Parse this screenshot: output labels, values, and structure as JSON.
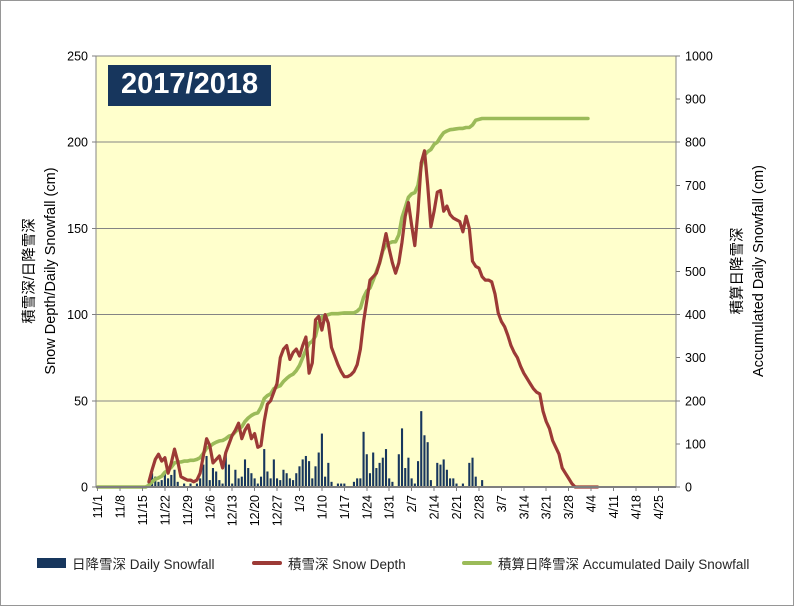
{
  "chart": {
    "title": "2017/2018",
    "left_axis": {
      "title_jp": "積雪深/日降雪深",
      "title_en": "Snow Depth/Daily Snowfall (cm)",
      "ticks": [
        0,
        50,
        100,
        150,
        200,
        250
      ]
    },
    "right_axis": {
      "title_jp": "積算日降雪深",
      "title_en": "Accumulated Daily Snowfall (cm)",
      "ticks": [
        0,
        100,
        200,
        300,
        400,
        500,
        600,
        700,
        800,
        900,
        1000
      ]
    },
    "legend": [
      {
        "label": "日降雪深 Daily Snowfall",
        "swatch": "bar",
        "color": "#17365D"
      },
      {
        "label": "積雪深 Snow Depth",
        "swatch": "line",
        "color": "#9C3A36"
      },
      {
        "label": "積算日降雪深 Accumulated Daily Snowfall",
        "swatch": "line",
        "color": "#9BBB59"
      }
    ]
  },
  "chart_data": {
    "type": "combo-bar-line",
    "plot_bg": "#FFFFCC",
    "gridline_color": "#848484",
    "axis_line_color": "#7F7F7F",
    "n_days": 181,
    "start_label": "11/1",
    "tick_interval_days": 7,
    "x_tick_labels": [
      "11/1",
      "11/8",
      "11/15",
      "11/22",
      "11/29",
      "12/6",
      "12/13",
      "12/20",
      "12/27",
      "1/3",
      "1/10",
      "1/17",
      "1/24",
      "1/31",
      "2/7",
      "2/14",
      "2/21",
      "2/28",
      "3/7",
      "3/14",
      "3/21",
      "3/28",
      "4/4",
      "4/11",
      "4/18",
      "4/25"
    ],
    "left_ylim": [
      0,
      250
    ],
    "right_ylim": [
      0,
      1000
    ],
    "series": [
      {
        "name": "日降雪深 Daily Snowfall",
        "type": "bar",
        "axis": "left",
        "color": "#17365D",
        "values": [
          0,
          0,
          0,
          0,
          0,
          0,
          0,
          0,
          0,
          0,
          0,
          0,
          0,
          0,
          0,
          0,
          4,
          8,
          6,
          3,
          4,
          9,
          5,
          7,
          10,
          3,
          0,
          2,
          0,
          2,
          0,
          2,
          5,
          13,
          18,
          4,
          11,
          9,
          4,
          2,
          20,
          13,
          2,
          10,
          5,
          6,
          16,
          11,
          8,
          5,
          2,
          6,
          22,
          9,
          5,
          16,
          5,
          4,
          10,
          8,
          5,
          4,
          8,
          12,
          16,
          18,
          15,
          5,
          12,
          20,
          31,
          6,
          14,
          3,
          0,
          2,
          2,
          2,
          0,
          0,
          3,
          5,
          5,
          32,
          19,
          8,
          20,
          11,
          14,
          17,
          22,
          5,
          3,
          0,
          19,
          34,
          11,
          17,
          5,
          2,
          15,
          44,
          30,
          26,
          4,
          0,
          14,
          13,
          16,
          10,
          5,
          5,
          2,
          0,
          2,
          0,
          14,
          17,
          6,
          0,
          4,
          0,
          0,
          0,
          0,
          0,
          0,
          0,
          0,
          0,
          0,
          0,
          0,
          0,
          0,
          0,
          0,
          0,
          0,
          0,
          0,
          0,
          0,
          0,
          0,
          0,
          0,
          0,
          0,
          0,
          0,
          0,
          0,
          0,
          0,
          0,
          0,
          0,
          0,
          null,
          null,
          null,
          null,
          null,
          null,
          null,
          null,
          null,
          null,
          null,
          null,
          null,
          null,
          null,
          null,
          null,
          null,
          null,
          null,
          null,
          null
        ]
      },
      {
        "name": "積雪深 Snow Depth",
        "type": "line",
        "axis": "left",
        "color": "#9C3A36",
        "values": [
          null,
          null,
          null,
          null,
          null,
          null,
          null,
          null,
          null,
          null,
          null,
          null,
          null,
          null,
          null,
          null,
          3,
          10,
          16,
          19,
          15,
          17,
          8,
          14,
          22,
          15,
          6,
          5,
          4,
          4,
          3,
          4,
          8,
          18,
          28,
          24,
          14,
          16,
          18,
          11,
          20,
          25,
          30,
          33,
          37,
          28,
          33,
          36,
          28,
          31,
          23,
          24,
          38,
          48,
          50,
          55,
          60,
          75,
          80,
          82,
          74,
          78,
          80,
          76,
          82,
          87,
          66,
          72,
          97,
          99,
          91,
          100,
          95,
          81,
          76,
          71,
          67,
          64,
          64,
          65,
          67,
          71,
          80,
          96,
          108,
          120,
          122,
          124,
          130,
          138,
          147,
          138,
          130,
          124,
          130,
          142,
          157,
          165,
          152,
          140,
          160,
          188,
          195,
          175,
          151,
          160,
          171,
          172,
          160,
          163,
          158,
          156,
          155,
          154,
          148,
          157,
          150,
          131,
          128,
          127,
          122,
          120,
          120,
          119,
          112,
          101,
          96,
          93,
          88,
          82,
          78,
          75,
          70,
          66,
          63,
          60,
          57,
          55,
          54,
          44,
          38,
          34,
          27,
          23,
          19,
          11,
          8,
          5,
          2,
          0,
          0,
          0,
          0,
          0,
          0,
          0,
          0,
          null,
          null,
          null,
          null,
          null,
          null,
          null,
          null,
          null,
          null,
          null,
          null,
          null,
          null,
          null,
          null,
          null,
          null,
          null,
          null,
          null,
          null,
          null,
          null
        ]
      },
      {
        "name": "積算日降雪深 Accumulated Daily Snowfall",
        "type": "line",
        "axis": "right",
        "color": "#9BBB59",
        "values": [
          0,
          0,
          0,
          0,
          0,
          0,
          0,
          0,
          0,
          0,
          0,
          0,
          0,
          0,
          0,
          0,
          4,
          12,
          18,
          21,
          25,
          34,
          39,
          46,
          56,
          58,
          58,
          60,
          60,
          62,
          62,
          64,
          68,
          78,
          90,
          94,
          100,
          104,
          107,
          108,
          112,
          118,
          120,
          128,
          135,
          140,
          152,
          160,
          166,
          170,
          172,
          185,
          205,
          212,
          216,
          228,
          232,
          235,
          245,
          252,
          258,
          262,
          270,
          282,
          300,
          318,
          333,
          338,
          350,
          381,
          395,
          397,
          400,
          402,
          402,
          402,
          403,
          404,
          404,
          404,
          404,
          408,
          415,
          440,
          455,
          462,
          480,
          500,
          520,
          548,
          562,
          566,
          569,
          569,
          585,
          625,
          648,
          672,
          680,
          683,
          700,
          745,
          770,
          778,
          783,
          795,
          800,
          812,
          822,
          826,
          829,
          830,
          831,
          832,
          832,
          834,
          834,
          840,
          851,
          853,
          855,
          855,
          855,
          855,
          855,
          855,
          855,
          855,
          855,
          855,
          855,
          855,
          855,
          855,
          855,
          855,
          855,
          855,
          855,
          855,
          855,
          855,
          855,
          855,
          855,
          855,
          855,
          855,
          855,
          855,
          855,
          855,
          855,
          855,
          null,
          null,
          null,
          null,
          null,
          null,
          null,
          null,
          null,
          null,
          null,
          null,
          null,
          null,
          null,
          null,
          null,
          null,
          null,
          null,
          null,
          null,
          null,
          null,
          null,
          null,
          null
        ]
      }
    ]
  }
}
